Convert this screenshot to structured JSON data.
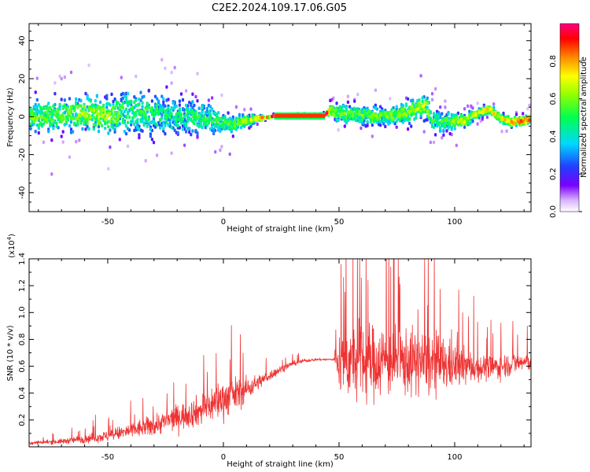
{
  "title": "C2E2.2024.109.17.06.G05",
  "chart_data": [
    {
      "type": "heatmap",
      "xlabel": "Height of straight line (km)",
      "ylabel": "Frequency (Hz)",
      "xlim": [
        -84,
        133
      ],
      "ylim": [
        -50,
        49
      ],
      "xticks": [
        -50,
        0,
        50,
        100
      ],
      "yticks": [
        -40,
        -20,
        0,
        20,
        40
      ],
      "grid": false,
      "colorbar": {
        "label": "Normalized spectral amplitude",
        "ticks": [
          "0.0",
          "0.2",
          "0.4",
          "0.6",
          "0.8"
        ],
        "range": [
          0,
          1
        ]
      },
      "ridge": {
        "x": [
          -80,
          -70,
          -60,
          -50,
          -40,
          -30,
          -20,
          -10,
          -5,
          0,
          5,
          10,
          15,
          20,
          25,
          30,
          35,
          40,
          44,
          46,
          50,
          60,
          70,
          80,
          86,
          88,
          90,
          95,
          100,
          105,
          110,
          115,
          120,
          125,
          130,
          133
        ],
        "y": [
          0,
          1,
          2,
          0,
          3,
          1,
          0,
          0,
          -1,
          -3,
          -4,
          -2,
          -1,
          0,
          1,
          1,
          1,
          1,
          1,
          3,
          2,
          1,
          0,
          2,
          6,
          5,
          -2,
          -3,
          -2,
          -2,
          2,
          4,
          -1,
          -3,
          -2,
          -1
        ],
        "spread": [
          14,
          14,
          14,
          16,
          18,
          18,
          16,
          13,
          12,
          9,
          7,
          5,
          3,
          1,
          1,
          1,
          1,
          1,
          1,
          7,
          8,
          8,
          8,
          9,
          9,
          10,
          10,
          8,
          7,
          5,
          4,
          4,
          4,
          4,
          4,
          4
        ],
        "amplitude": [
          0.55,
          0.55,
          0.6,
          0.6,
          0.5,
          0.5,
          0.45,
          0.5,
          0.5,
          0.5,
          0.55,
          0.6,
          0.7,
          0.85,
          1.0,
          1.0,
          1.0,
          1.0,
          1.0,
          0.6,
          0.55,
          0.55,
          0.55,
          0.6,
          0.65,
          0.6,
          0.5,
          0.5,
          0.6,
          0.65,
          0.65,
          0.7,
          0.65,
          0.75,
          0.8,
          0.8
        ]
      }
    },
    {
      "type": "line",
      "xlabel": "Height of straight line (km)",
      "ylabel": "SNR (10 * v/v)",
      "yscale_label": "(x10",
      "yscale_exp": "4",
      "xlim": [
        -84,
        133
      ],
      "ylim": [
        0,
        14000
      ],
      "xticks": [
        -50,
        0,
        50,
        100
      ],
      "yticks": [
        "0.2",
        "0.4",
        "0.6",
        "0.8",
        "1.0",
        "1.2",
        "1.4"
      ],
      "grid": false,
      "color": "#ee3333",
      "series": [
        {
          "x": [
            -84,
            -70,
            -60,
            -50,
            -40,
            -30,
            -20,
            -10,
            -5,
            0,
            5,
            10,
            15,
            20,
            25,
            30,
            35,
            40,
            45,
            48,
            50,
            55,
            60,
            65,
            70,
            75,
            80,
            85,
            90,
            95,
            100,
            105,
            110,
            115,
            120,
            125,
            130,
            133
          ],
          "mean": [
            300,
            400,
            600,
            800,
            1200,
            1600,
            2200,
            2700,
            3200,
            3600,
            3900,
            4300,
            4800,
            5300,
            5800,
            6200,
            6400,
            6500,
            6500,
            6500,
            6400,
            6300,
            6400,
            6300,
            6500,
            6400,
            6300,
            6300,
            6200,
            6100,
            6000,
            6000,
            5900,
            5900,
            6000,
            6200,
            6300,
            6300
          ],
          "amp": [
            300,
            400,
            700,
            900,
            1300,
            1700,
            2000,
            2500,
            3000,
            3200,
            2800,
            2000,
            1200,
            800,
            600,
            400,
            300,
            200,
            200,
            300,
            5000,
            6000,
            6500,
            6000,
            6000,
            5500,
            5500,
            5000,
            5500,
            4500,
            3500,
            3000,
            2200,
            2000,
            2000,
            1800,
            1500,
            1500
          ]
        }
      ]
    }
  ]
}
